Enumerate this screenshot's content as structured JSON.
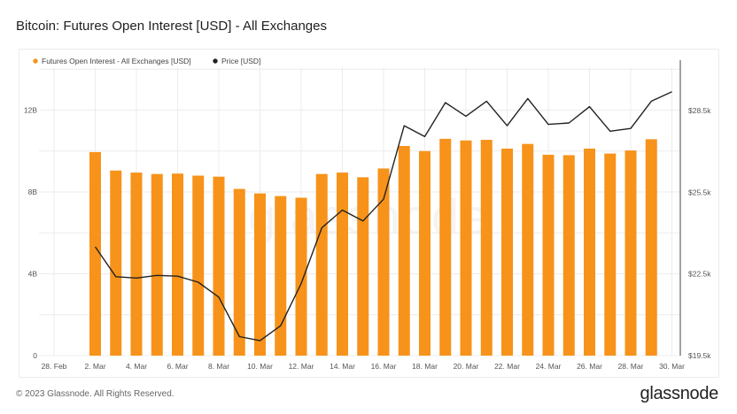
{
  "header": {
    "title": "Bitcoin: Futures Open Interest [USD] - All Exchanges"
  },
  "footer": {
    "copyright": "© 2023 Glassnode. All Rights Reserved.",
    "logo": "glassnode",
    "watermark": "glassnode"
  },
  "colors": {
    "bar": "#f7931a",
    "line": "#222222",
    "grid": "#ececec"
  },
  "chart_data": {
    "type": "bar",
    "title": "Bitcoin: Futures Open Interest [USD] - All Exchanges",
    "x_dates": [
      "28. Feb",
      "1. Mar",
      "2. Mar",
      "3. Mar",
      "4. Mar",
      "5. Mar",
      "6. Mar",
      "7. Mar",
      "8. Mar",
      "9. Mar",
      "10. Mar",
      "11. Mar",
      "12. Mar",
      "13. Mar",
      "14. Mar",
      "15. Mar",
      "16. Mar",
      "17. Mar",
      "18. Mar",
      "19. Mar",
      "20. Mar",
      "21. Mar",
      "22. Mar",
      "23. Mar",
      "24. Mar",
      "25. Mar",
      "26. Mar",
      "27. Mar",
      "28. Mar",
      "29. Mar",
      "30. Mar"
    ],
    "x_tick_labels": [
      "28. Feb",
      "2. Mar",
      "4. Mar",
      "6. Mar",
      "8. Mar",
      "10. Mar",
      "12. Mar",
      "14. Mar",
      "16. Mar",
      "18. Mar",
      "20. Mar",
      "22. Mar",
      "24. Mar",
      "26. Mar",
      "28. Mar",
      "30. Mar"
    ],
    "left_axis": {
      "ticks": [
        "0",
        "4B",
        "8B",
        "12B"
      ],
      "tick_values": [
        0,
        4,
        8,
        12
      ],
      "range": [
        0,
        14.1
      ]
    },
    "right_axis": {
      "ticks": [
        "$19.5k",
        "$22.5k",
        "$25.5k",
        "$28.5k"
      ],
      "tick_values": [
        19.5,
        22.5,
        25.5,
        28.5
      ],
      "range": [
        19.5,
        30.1
      ]
    },
    "legend_position": "top-left",
    "grid": true,
    "series": [
      {
        "name": "Futures Open Interest - All Exchanges [USD]",
        "kind": "bar",
        "axis": "left",
        "unit": "B",
        "values": [
          null,
          null,
          9.95,
          9.05,
          8.95,
          8.88,
          8.9,
          8.8,
          8.75,
          8.15,
          7.93,
          7.8,
          7.72,
          8.88,
          8.95,
          8.72,
          9.15,
          10.25,
          10.0,
          10.6,
          10.52,
          10.55,
          10.12,
          10.35,
          9.82,
          9.8,
          10.12,
          9.88,
          10.03,
          10.58,
          null
        ]
      },
      {
        "name": "Price [USD]",
        "kind": "line",
        "axis": "right",
        "unit": "k",
        "values": [
          null,
          null,
          23.5,
          22.4,
          22.35,
          22.45,
          22.42,
          22.2,
          21.65,
          20.2,
          20.05,
          20.6,
          22.15,
          24.2,
          24.85,
          24.45,
          25.25,
          27.95,
          27.55,
          28.8,
          28.3,
          28.85,
          27.95,
          28.95,
          28.0,
          28.05,
          28.65,
          27.75,
          27.85,
          28.85,
          29.2
        ]
      }
    ]
  }
}
